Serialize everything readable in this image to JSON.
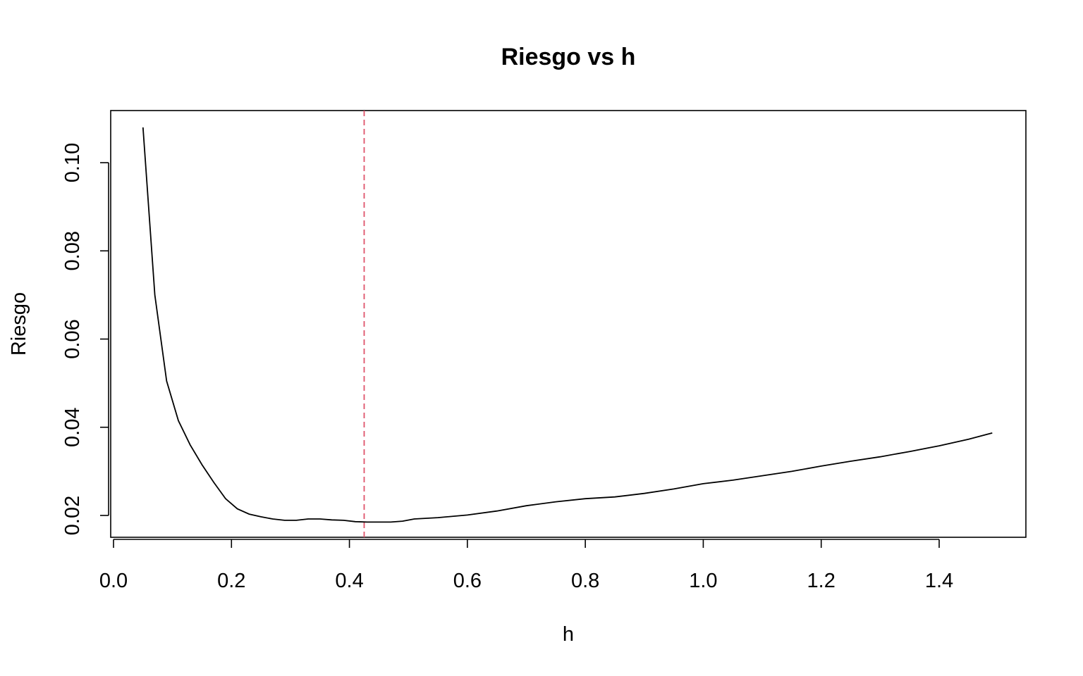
{
  "chart_data": {
    "type": "line",
    "title": "Riesgo vs h",
    "xlabel": "h",
    "ylabel": "Riesgo",
    "xlim": [
      0.0,
      1.5
    ],
    "ylim": [
      0.015,
      0.112
    ],
    "x_ticks": [
      0.0,
      0.2,
      0.4,
      0.6,
      0.8,
      1.0,
      1.2,
      1.4
    ],
    "x_tick_labels": [
      "0.0",
      "0.2",
      "0.4",
      "0.6",
      "0.8",
      "1.0",
      "1.2",
      "1.4"
    ],
    "y_ticks": [
      0.02,
      0.04,
      0.06,
      0.08,
      0.1
    ],
    "y_tick_labels": [
      "0.02",
      "0.04",
      "0.06",
      "0.08",
      "0.10"
    ],
    "grid": false,
    "line_color": "#000000",
    "series": [
      {
        "x": [
          0.05,
          0.07,
          0.09,
          0.11,
          0.13,
          0.15,
          0.17,
          0.19,
          0.21,
          0.23,
          0.25,
          0.27,
          0.29,
          0.31,
          0.33,
          0.35,
          0.37,
          0.39,
          0.41,
          0.43,
          0.45,
          0.47,
          0.49,
          0.51,
          0.55,
          0.6,
          0.65,
          0.7,
          0.75,
          0.8,
          0.85,
          0.9,
          0.95,
          1.0,
          1.05,
          1.1,
          1.15,
          1.2,
          1.25,
          1.3,
          1.35,
          1.4,
          1.45,
          1.49
        ],
        "y": [
          0.108,
          0.07,
          0.0505,
          0.0415,
          0.036,
          0.0315,
          0.0275,
          0.0238,
          0.0215,
          0.0203,
          0.0197,
          0.0192,
          0.0189,
          0.0189,
          0.0192,
          0.0192,
          0.019,
          0.0189,
          0.0186,
          0.0185,
          0.0185,
          0.0185,
          0.0187,
          0.0192,
          0.0195,
          0.0201,
          0.021,
          0.0222,
          0.0231,
          0.0238,
          0.0242,
          0.025,
          0.026,
          0.0272,
          0.028,
          0.029,
          0.03,
          0.0312,
          0.0323,
          0.0333,
          0.0345,
          0.0358,
          0.0373,
          0.0387
        ]
      }
    ],
    "reference_line": {
      "orientation": "vertical",
      "x": 0.425,
      "color": "#DF536B",
      "style": "dashed"
    }
  }
}
